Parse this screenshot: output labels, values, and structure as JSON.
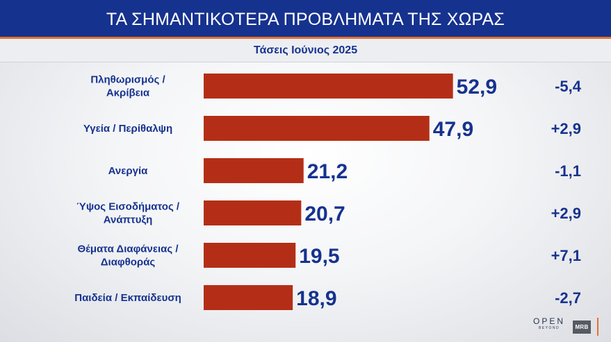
{
  "header": {
    "title": "ΤΑ ΣΗΜΑΝΤΙΚΟΤΕΡΑ ΠΡΟΒΛΗΜΑΤΑ ΤΗΣ ΧΩΡΑΣ",
    "subtitle": "Τάσεις Ιούνιος 2025"
  },
  "chart_data": {
    "type": "bar",
    "orientation": "horizontal",
    "title": "ΤΑ ΣΗΜΑΝΤΙΚΟΤΕΡΑ ΠΡΟΒΛΗΜΑΤΑ ΤΗΣ ΧΩΡΑΣ",
    "subtitle": "Τάσεις Ιούνιος 2025",
    "categories": [
      [
        "Πληθωρισμός /",
        "Ακρίβεια"
      ],
      [
        "Υγεία / Περίθαλψη"
      ],
      [
        "Ανεργία"
      ],
      [
        "Ύψος Εισοδήματος /",
        "Ανάπτυξη"
      ],
      [
        "Θέματα Διαφάνειας /",
        "Διαφθοράς"
      ],
      [
        "Παιδεία / Εκπαίδευση"
      ]
    ],
    "values": [
      52.9,
      47.9,
      21.2,
      20.7,
      19.5,
      18.9
    ],
    "value_labels": [
      "52,9",
      "47,9",
      "21,2",
      "20,7",
      "19,5",
      "18,9"
    ],
    "changes": [
      "-5,4",
      "+2,9",
      "-1,1",
      "+2,9",
      "+7,1",
      "-2,7"
    ],
    "bar_color": "#b42e17",
    "text_color": "#16328f",
    "grid": false,
    "legend": "none"
  },
  "logos": {
    "open_main": "OPEN",
    "open_sub": "BEYOND",
    "mrb": "MRB"
  },
  "colors": {
    "header_bg": "#16328f",
    "accent": "#e86f2c"
  }
}
